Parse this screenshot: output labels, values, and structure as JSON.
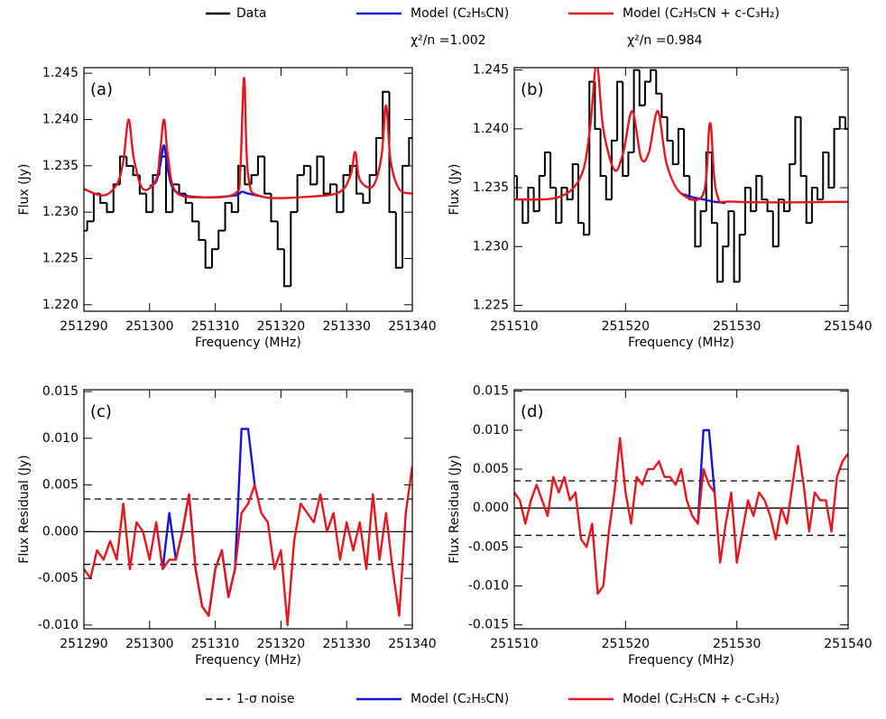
{
  "chart_data": [
    {
      "type": "line",
      "label": "(a)",
      "xlabel": "Frequency (MHz)",
      "ylabel": "Flux (Jy)",
      "xlim": [
        251290,
        251340
      ],
      "ylim": [
        1.2193,
        1.2456
      ],
      "xticks": [
        251290,
        251300,
        251310,
        251320,
        251330,
        251340
      ],
      "yticks": [
        {
          "value": 1.22,
          "label": "1.220"
        },
        1.225,
        {
          "value": 1.23,
          "label": "1.230"
        },
        1.235,
        {
          "value": 1.24,
          "label": "1.240"
        },
        1.245
      ],
      "series": [
        {
          "name": "Data",
          "color": "#000000",
          "drawstyle": "steps",
          "x": [
            251290,
            251291,
            251292,
            251293,
            251294,
            251295,
            251296,
            251297,
            251298,
            251299,
            251300,
            251301,
            251302,
            251303,
            251304,
            251305,
            251306,
            251307,
            251308,
            251309,
            251310,
            251311,
            251312,
            251313,
            251314,
            251315,
            251316,
            251317,
            251318,
            251319,
            251320,
            251321,
            251322,
            251323,
            251324,
            251325,
            251326,
            251327,
            251328,
            251329,
            251330,
            251331,
            251332,
            251333,
            251334,
            251335,
            251336,
            251337,
            251338,
            251339,
            251340
          ],
          "values": [
            1.228,
            1.229,
            1.232,
            1.231,
            1.23,
            1.233,
            1.236,
            1.235,
            1.234,
            1.232,
            1.23,
            1.234,
            1.236,
            1.23,
            1.233,
            1.232,
            1.231,
            1.229,
            1.227,
            1.224,
            1.226,
            1.228,
            1.231,
            1.23,
            1.235,
            1.233,
            1.234,
            1.236,
            1.232,
            1.229,
            1.226,
            1.222,
            1.23,
            1.234,
            1.235,
            1.233,
            1.236,
            1.232,
            1.233,
            1.23,
            1.234,
            1.235,
            1.232,
            1.231,
            1.234,
            1.238,
            1.243,
            1.23,
            1.224,
            1.235,
            1.238
          ]
        },
        {
          "name": "Model (C₂H₅CN)",
          "color": "#1414d8",
          "smooth": true,
          "stat_label": "χ²/n =1.002",
          "x": [
            251300,
            251301,
            251301.6,
            251302.2,
            251302.8,
            251304,
            251308,
            251313,
            251314,
            251315,
            251317
          ],
          "values": [
            1.2328,
            1.2333,
            1.235,
            1.2372,
            1.2345,
            1.2322,
            1.2316,
            1.2318,
            1.2322,
            1.232,
            1.2317
          ]
        },
        {
          "name": "Model (C₂H₅CN + c-C₃H₂)",
          "color": "#e4161e",
          "smooth": true,
          "stat_label": "χ²/n =0.984",
          "x": [
            251290,
            251293,
            251295,
            251296,
            251296.8,
            251297.6,
            251299,
            251301,
            251301.6,
            251302.2,
            251302.8,
            251304,
            251308,
            251313,
            251313.8,
            251314.4,
            251315,
            251317,
            251325,
            251329,
            251330.6,
            251331.3,
            251332,
            251334,
            251335.3,
            251336,
            251336.7,
            251338,
            251340
          ],
          "values": [
            1.2325,
            1.2318,
            1.233,
            1.2355,
            1.24,
            1.2358,
            1.2325,
            1.2335,
            1.2365,
            1.24,
            1.236,
            1.2322,
            1.2316,
            1.232,
            1.2345,
            1.2445,
            1.234,
            1.2317,
            1.2317,
            1.2322,
            1.234,
            1.2365,
            1.2335,
            1.2328,
            1.236,
            1.2415,
            1.2355,
            1.2325,
            1.232
          ]
        }
      ]
    },
    {
      "type": "line",
      "label": "(b)",
      "xlabel": "Frequency (MHz)",
      "ylabel": "Flux (Jy)",
      "xlim": [
        251510,
        251540
      ],
      "ylim": [
        1.2245,
        1.2452
      ],
      "xticks": [
        251510,
        251520,
        251530,
        251540
      ],
      "yticks": [
        1.225,
        {
          "value": 1.23,
          "label": "1.230"
        },
        1.235,
        {
          "value": 1.24,
          "label": "1.240"
        },
        1.245
      ],
      "series": [
        {
          "color": "#000000",
          "drawstyle": "steps",
          "x": [
            251510,
            251510.5,
            251511,
            251511.5,
            251512,
            251512.5,
            251513,
            251513.5,
            251514,
            251514.5,
            251515,
            251515.5,
            251516,
            251516.5,
            251517,
            251517.5,
            251518,
            251518.5,
            251519,
            251519.5,
            251520,
            251520.5,
            251521,
            251521.5,
            251522,
            251522.5,
            251523,
            251523.5,
            251524,
            251524.5,
            251525,
            251525.5,
            251526,
            251526.5,
            251527,
            251527.5,
            251528,
            251528.5,
            251529,
            251529.5,
            251530,
            251530.5,
            251531,
            251531.5,
            251532,
            251532.5,
            251533,
            251533.5,
            251534,
            251534.5,
            251535,
            251535.5,
            251536,
            251536.5,
            251537,
            251537.5,
            251538,
            251538.5,
            251539,
            251539.5,
            251540
          ],
          "values": [
            1.236,
            1.234,
            1.232,
            1.235,
            1.233,
            1.236,
            1.238,
            1.235,
            1.232,
            1.235,
            1.234,
            1.237,
            1.232,
            1.231,
            1.244,
            1.24,
            1.236,
            1.234,
            1.239,
            1.244,
            1.236,
            1.238,
            1.245,
            1.242,
            1.244,
            1.245,
            1.243,
            1.241,
            1.239,
            1.237,
            1.24,
            1.236,
            1.234,
            1.23,
            1.233,
            1.238,
            1.232,
            1.227,
            1.23,
            1.233,
            1.227,
            1.231,
            1.235,
            1.233,
            1.236,
            1.234,
            1.233,
            1.23,
            1.234,
            1.233,
            1.237,
            1.241,
            1.236,
            1.232,
            1.235,
            1.234,
            1.238,
            1.235,
            1.24,
            1.241,
            1.24
          ]
        },
        {
          "color": "#1414d8",
          "smooth": true,
          "x": [
            251525,
            251526,
            251527,
            251528,
            251529
          ],
          "values": [
            1.2345,
            1.2342,
            1.234,
            1.2338,
            1.2337
          ]
        },
        {
          "color": "#e4161e",
          "smooth": true,
          "x": [
            251510,
            251514,
            251516,
            251516.8,
            251517.4,
            251518,
            251519,
            251519.8,
            251520.6,
            251521.4,
            251522.1,
            251522.9,
            251523.7,
            251525,
            251527,
            251527.6,
            251528.2,
            251530,
            251540
          ],
          "values": [
            1.234,
            1.2342,
            1.236,
            1.24,
            1.2455,
            1.24,
            1.2365,
            1.238,
            1.2415,
            1.2375,
            1.238,
            1.2415,
            1.237,
            1.2345,
            1.2345,
            1.2405,
            1.2345,
            1.2338,
            1.2338
          ]
        }
      ]
    },
    {
      "type": "line",
      "label": "(c)",
      "xlabel": "Frequency (MHz)",
      "ylabel": "Flux Residual (Jy)",
      "xlim": [
        251290,
        251340
      ],
      "ylim": [
        -0.0104,
        0.0152
      ],
      "xticks": [
        251290,
        251300,
        251310,
        251320,
        251330,
        251340
      ],
      "yticks": [
        {
          "value": -0.01,
          "label": "-0.010"
        },
        -0.005,
        {
          "value": 0,
          "label": "0.000"
        },
        0.005,
        {
          "value": 0.01,
          "label": "0.010"
        },
        0.015
      ],
      "reference_lines": [
        {
          "color": "#000000",
          "dash": false,
          "values": [
            0
          ]
        },
        {
          "name": "1-σ noise",
          "color": "#000000",
          "dash": true,
          "values": [
            0.0035,
            -0.0035
          ]
        }
      ],
      "series": [
        {
          "name": "Model (C₂H₅CN)",
          "color": "#1414d8",
          "x": [
            251301,
            251302,
            251303,
            251304,
            251305,
            251306,
            251307,
            251308,
            251309,
            251310,
            251311,
            251312,
            251313,
            251314,
            251315,
            251316
          ],
          "values": [
            0.001,
            -0.004,
            0.002,
            -0.003,
            0.0,
            0.004,
            -0.004,
            -0.008,
            -0.009,
            -0.004,
            -0.002,
            -0.007,
            -0.004,
            0.011,
            0.011,
            0.005
          ]
        },
        {
          "name": "Model (C₂H₅CN + c-C₃H₂)",
          "color": "#e4161e",
          "x": [
            251290,
            251291,
            251292,
            251293,
            251294,
            251295,
            251296,
            251297,
            251298,
            251299,
            251300,
            251301,
            251302,
            251303,
            251304,
            251305,
            251306,
            251307,
            251308,
            251309,
            251310,
            251311,
            251312,
            251313,
            251314,
            251315,
            251316,
            251317,
            251318,
            251319,
            251320,
            251321,
            251322,
            251323,
            251324,
            251325,
            251326,
            251327,
            251328,
            251329,
            251330,
            251331,
            251332,
            251333,
            251334,
            251335,
            251336,
            251337,
            251338,
            251339,
            251340
          ],
          "values": [
            -0.004,
            -0.005,
            -0.002,
            -0.003,
            -0.001,
            -0.003,
            0.003,
            -0.004,
            0.001,
            0.0,
            -0.003,
            0.001,
            -0.004,
            -0.003,
            -0.003,
            0.0,
            0.004,
            -0.004,
            -0.008,
            -0.009,
            -0.004,
            -0.002,
            -0.007,
            -0.004,
            0.002,
            0.003,
            0.005,
            0.002,
            0.001,
            -0.004,
            -0.002,
            -0.01,
            -0.001,
            0.003,
            0.002,
            0.001,
            0.004,
            0.0,
            0.002,
            -0.003,
            0.001,
            -0.002,
            0.001,
            -0.004,
            0.004,
            -0.003,
            0.002,
            -0.004,
            -0.009,
            0.002,
            0.007
          ]
        }
      ]
    },
    {
      "type": "line",
      "label": "(d)",
      "xlabel": "Frequency (MHz)",
      "ylabel": "Flux Residual (Jy)",
      "xlim": [
        251510,
        251540
      ],
      "ylim": [
        -0.0155,
        0.0152
      ],
      "xticks": [
        251510,
        251520,
        251530,
        251540
      ],
      "yticks": [
        -0.015,
        {
          "value": -0.01,
          "label": "-0.010"
        },
        -0.005,
        {
          "value": 0,
          "label": "0.000"
        },
        0.005,
        {
          "value": 0.01,
          "label": "0.010"
        },
        0.015
      ],
      "reference_lines": [
        {
          "color": "#000000",
          "dash": false,
          "values": [
            0
          ]
        },
        {
          "color": "#000000",
          "dash": true,
          "values": [
            0.0035,
            -0.0035
          ]
        }
      ],
      "series": [
        {
          "color": "#1414d8",
          "x": [
            251526.5,
            251527,
            251527.5,
            251528
          ],
          "values": [
            -0.002,
            0.01,
            0.01,
            0.002
          ]
        },
        {
          "color": "#e4161e",
          "x": [
            251510,
            251510.5,
            251511,
            251511.5,
            251512,
            251512.5,
            251513,
            251513.5,
            251514,
            251514.5,
            251515,
            251515.5,
            251516,
            251516.5,
            251517,
            251517.5,
            251518,
            251518.5,
            251519,
            251519.5,
            251520,
            251520.5,
            251521,
            251521.5,
            251522,
            251522.5,
            251523,
            251523.5,
            251524,
            251524.5,
            251525,
            251525.5,
            251526,
            251526.5,
            251527,
            251527.5,
            251528,
            251528.5,
            251529,
            251529.5,
            251530,
            251530.5,
            251531,
            251531.5,
            251532,
            251532.5,
            251533,
            251533.5,
            251534,
            251534.5,
            251535,
            251535.5,
            251536,
            251536.5,
            251537,
            251537.5,
            251538,
            251538.5,
            251539,
            251539.5,
            251540
          ],
          "values": [
            0.002,
            0.001,
            -0.002,
            0.001,
            0.003,
            0.001,
            -0.001,
            0.004,
            0.002,
            0.004,
            0.001,
            0.002,
            -0.004,
            -0.005,
            -0.002,
            -0.011,
            -0.01,
            -0.003,
            0.002,
            0.009,
            0.002,
            -0.002,
            0.004,
            0.003,
            0.005,
            0.005,
            0.006,
            0.004,
            0.004,
            0.003,
            0.005,
            0.001,
            -0.001,
            -0.002,
            0.005,
            0.003,
            0.002,
            -0.007,
            -0.002,
            0.002,
            -0.007,
            -0.003,
            0.001,
            -0.001,
            0.002,
            0.001,
            -0.001,
            -0.004,
            0.0,
            -0.002,
            0.003,
            0.008,
            0.003,
            -0.003,
            0.002,
            0.001,
            0.001,
            -0.003,
            0.004,
            0.006,
            0.007
          ]
        }
      ]
    }
  ]
}
